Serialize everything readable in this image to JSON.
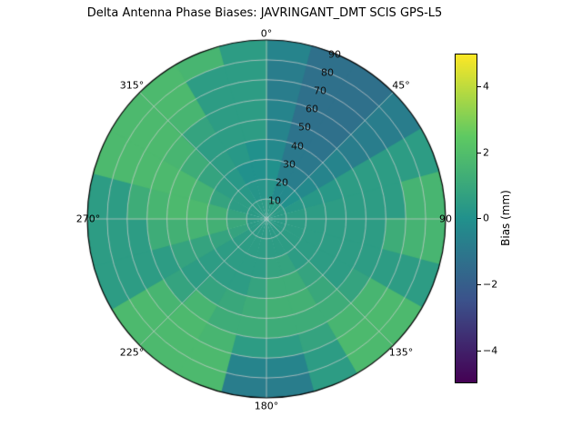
{
  "title": "Delta Antenna Phase Biases: JAVRINGANT_DMT  SCIS GPS-L5",
  "polar": {
    "theta_labels": [
      "0°",
      "45°",
      "90",
      "135°",
      "180°",
      "225°",
      "270°",
      "315°"
    ],
    "r_labels": [
      "90",
      "80",
      "70",
      "60",
      "50",
      "40",
      "30",
      "20",
      "10"
    ]
  },
  "colorbar": {
    "label": "Bias (mm)",
    "ticks": [
      "4",
      "2",
      "0",
      "−2",
      "−4"
    ]
  },
  "chart_data": {
    "type": "heatmap",
    "projection": "polar",
    "title": "Delta Antenna Phase Biases: JAVRINGANT_DMT  SCIS GPS-L5",
    "theta_convention": "azimuth degrees, 0 at top, increasing clockwise",
    "theta_tick_labels": [
      "0°",
      "45°",
      "90",
      "135°",
      "180°",
      "225°",
      "270°",
      "315°"
    ],
    "r_tick_values": [
      10,
      20,
      30,
      40,
      50,
      60,
      70,
      80,
      90
    ],
    "r_range": [
      0,
      90
    ],
    "azimuth_step_deg": 15,
    "r_step": 10,
    "values_unit": "mm",
    "vmin": -5,
    "vmax": 5,
    "colormap": "viridis",
    "viridis_stops": [
      "#440154",
      "#3b528b",
      "#21918c",
      "#5ec962",
      "#fde725"
    ],
    "colorbar_ticks": [
      -4,
      -2,
      0,
      2,
      4
    ],
    "colorbar_label": "Bias (mm)",
    "grid": true,
    "values_mm": [
      [
        0.4,
        0.4,
        0.4,
        0.4,
        0.4,
        0.4,
        0.4,
        0.4,
        0.4,
        0.4,
        0.4,
        0.4,
        0.4,
        0.4,
        0.4,
        0.4,
        0.4,
        0.4,
        0.4,
        0.4,
        0.4,
        0.4,
        0.4,
        0.4
      ],
      [
        0.2,
        -0.3,
        -0.3,
        0.0,
        0.3,
        0.5,
        0.5,
        0.5,
        0.5,
        0.5,
        0.5,
        0.5,
        0.5,
        0.5,
        0.5,
        0.5,
        0.8,
        1.0,
        0.8,
        0.5,
        0.5,
        0.3,
        0.2,
        0.2
      ],
      [
        0.0,
        -0.8,
        -0.8,
        -0.3,
        0.3,
        0.5,
        0.5,
        0.5,
        0.5,
        0.5,
        0.8,
        0.8,
        0.5,
        0.5,
        0.5,
        0.5,
        0.8,
        1.4,
        1.4,
        0.8,
        0.5,
        0.3,
        0.0,
        0.0
      ],
      [
        -0.3,
        -1.0,
        -1.0,
        -0.5,
        0.3,
        0.5,
        0.5,
        0.5,
        0.5,
        0.8,
        1.2,
        1.2,
        0.8,
        0.5,
        0.5,
        0.5,
        0.8,
        1.5,
        1.8,
        1.5,
        0.8,
        0.5,
        0.3,
        0.0
      ],
      [
        -0.5,
        -1.2,
        -1.2,
        -0.5,
        0.5,
        0.5,
        0.5,
        0.5,
        0.5,
        1.0,
        1.4,
        1.4,
        1.2,
        1.0,
        0.8,
        0.5,
        0.8,
        1.4,
        1.8,
        1.8,
        1.2,
        0.5,
        0.5,
        0.5
      ],
      [
        -0.5,
        -1.3,
        -1.3,
        -0.8,
        0.5,
        0.5,
        0.5,
        0.5,
        0.8,
        1.2,
        1.2,
        1.2,
        1.2,
        1.2,
        1.6,
        0.8,
        0.5,
        1.2,
        1.6,
        1.8,
        1.6,
        0.8,
        0.5,
        0.5
      ],
      [
        -0.8,
        -1.3,
        -1.3,
        -0.8,
        0.5,
        0.5,
        1.2,
        0.5,
        1.6,
        1.6,
        0.8,
        0.5,
        0.5,
        1.6,
        1.8,
        1.6,
        0.5,
        0.5,
        1.2,
        1.8,
        1.8,
        1.6,
        0.5,
        0.5
      ],
      [
        -0.8,
        -1.3,
        -1.3,
        -0.8,
        0.5,
        1.5,
        1.5,
        0.5,
        1.8,
        1.8,
        0.5,
        -0.5,
        -0.5,
        1.8,
        1.8,
        1.8,
        0.5,
        0.5,
        0.5,
        1.8,
        1.8,
        1.8,
        0.5,
        0.5
      ],
      [
        -0.5,
        -1.3,
        -1.3,
        -0.8,
        0.5,
        1.6,
        1.6,
        0.5,
        1.8,
        1.8,
        0.5,
        -0.8,
        -0.8,
        1.8,
        1.8,
        1.8,
        0.5,
        0.5,
        0.5,
        1.8,
        1.8,
        1.8,
        1.6,
        0.5
      ]
    ]
  }
}
